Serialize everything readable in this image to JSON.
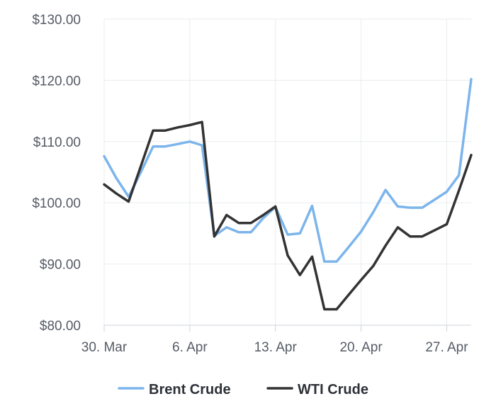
{
  "chart_data": {
    "type": "line",
    "title": "",
    "xlabel": "",
    "ylabel": "",
    "ylim": [
      80,
      130
    ],
    "y_ticks": [
      80,
      90,
      100,
      110,
      120,
      130
    ],
    "y_tick_labels": [
      "$80.00",
      "$90.00",
      "$100.00",
      "$110.00",
      "$120.00",
      "$130.00"
    ],
    "x_tick_labels": [
      "30. Mar",
      "6. Apr",
      "13. Apr",
      "20. Apr",
      "27. Apr"
    ],
    "x_tick_dates": [
      "2026-03-30",
      "2026-04-06",
      "2026-04-13",
      "2026-04-20",
      "2026-04-27"
    ],
    "x_range": [
      "2026-03-30",
      "2026-04-29"
    ],
    "grid": true,
    "legend": "bottom",
    "x": [
      "2026-03-30",
      "2026-03-31",
      "2026-04-01",
      "2026-04-02",
      "2026-04-03",
      "2026-04-04",
      "2026-04-05",
      "2026-04-06",
      "2026-04-07",
      "2026-04-08",
      "2026-04-09",
      "2026-04-10",
      "2026-04-11",
      "2026-04-12",
      "2026-04-13",
      "2026-04-14",
      "2026-04-15",
      "2026-04-16",
      "2026-04-17",
      "2026-04-18",
      "2026-04-19",
      "2026-04-20",
      "2026-04-21",
      "2026-04-22",
      "2026-04-23",
      "2026-04-24",
      "2026-04-25",
      "2026-04-26",
      "2026-04-27",
      "2026-04-28",
      "2026-04-29"
    ],
    "series": [
      {
        "name": "Brent Crude",
        "color": "#7cb5ec",
        "values": [
          107.6,
          104.0,
          101.0,
          105.0,
          109.2,
          109.2,
          109.6,
          110.0,
          109.4,
          94.6,
          96.0,
          95.2,
          95.2,
          97.5,
          99.3,
          94.8,
          95.0,
          99.5,
          90.4,
          90.4,
          92.8,
          95.3,
          98.5,
          102.1,
          99.4,
          99.2,
          99.2,
          100.5,
          101.8,
          104.5,
          120.2
        ]
      },
      {
        "name": "WTI Crude",
        "color": "#333333",
        "values": [
          103.0,
          101.5,
          100.2,
          106.0,
          111.8,
          111.8,
          112.3,
          112.7,
          113.2,
          94.5,
          98.0,
          96.7,
          96.7,
          98.0,
          99.4,
          91.4,
          88.2,
          91.2,
          82.6,
          82.6,
          85.0,
          87.4,
          89.7,
          93.0,
          96.0,
          94.5,
          94.5,
          95.5,
          96.5,
          102.0,
          107.8
        ]
      }
    ]
  }
}
